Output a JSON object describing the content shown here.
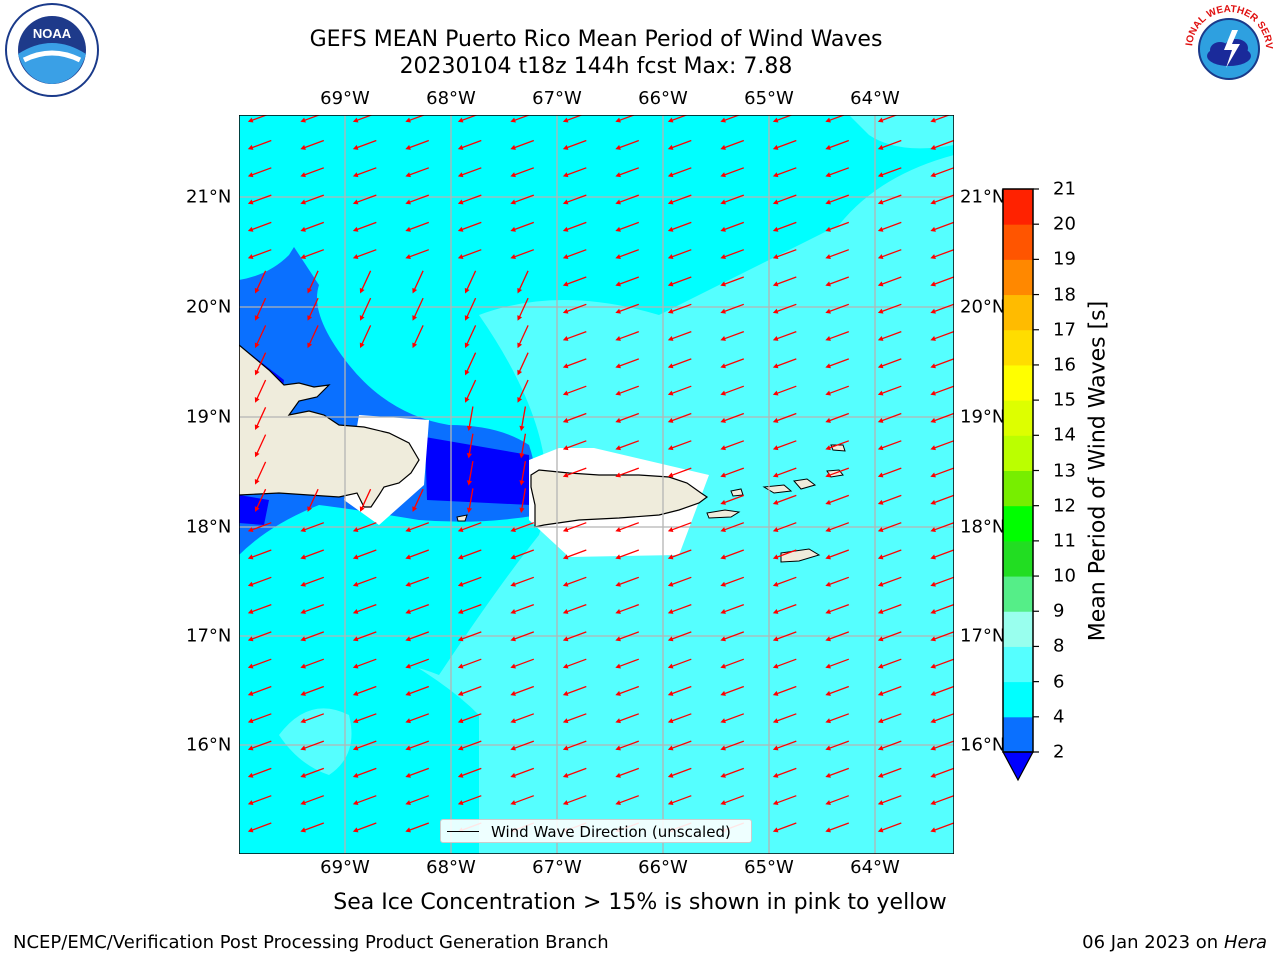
{
  "header": {
    "title_line1": "GEFS MEAN Puerto Rico Mean Period of Wind Waves",
    "title_line2": "20230104 t18z 144h fcst   Max: 7.88"
  },
  "map": {
    "lon_labels": [
      "69°W",
      "68°W",
      "67°W",
      "66°W",
      "65°W",
      "64°W"
    ],
    "lat_labels": [
      "21°N",
      "20°N",
      "19°N",
      "18°N",
      "17°N",
      "16°N"
    ],
    "legend_text": "Wind Wave Direction (unscaled)",
    "arrow_color": "#ff0000",
    "land_color": "#efecdc",
    "ocean_base_color": "#00ffff"
  },
  "colorbar": {
    "label": "Mean Period of Wind Waves [s]",
    "ticks": [
      "2",
      "4",
      "6",
      "8",
      "9",
      "10",
      "11",
      "12",
      "13",
      "14",
      "15",
      "16",
      "17",
      "18",
      "19",
      "20",
      "21"
    ],
    "colors": [
      "#0a70ff",
      "#00ffff",
      "#55ffff",
      "#99ffee",
      "#55ee88",
      "#22dd22",
      "#00ff00",
      "#77ee00",
      "#bbff00",
      "#ddff00",
      "#ffff00",
      "#ffdd00",
      "#ffbb00",
      "#ff8800",
      "#ff5500",
      "#ff2200"
    ],
    "extend_color": "#0000ff"
  },
  "subtitle": "Sea Ice Concentration > 15% is shown in pink to yellow",
  "footer": {
    "left": "NCEP/EMC/Verification Post Processing Product Generation Branch",
    "right_prefix": "06 Jan 2023 on ",
    "right_host": "Hera"
  },
  "logos": {
    "noaa_text": "NOAA",
    "nws_text": "NATIONAL WEATHER SERVICE"
  }
}
